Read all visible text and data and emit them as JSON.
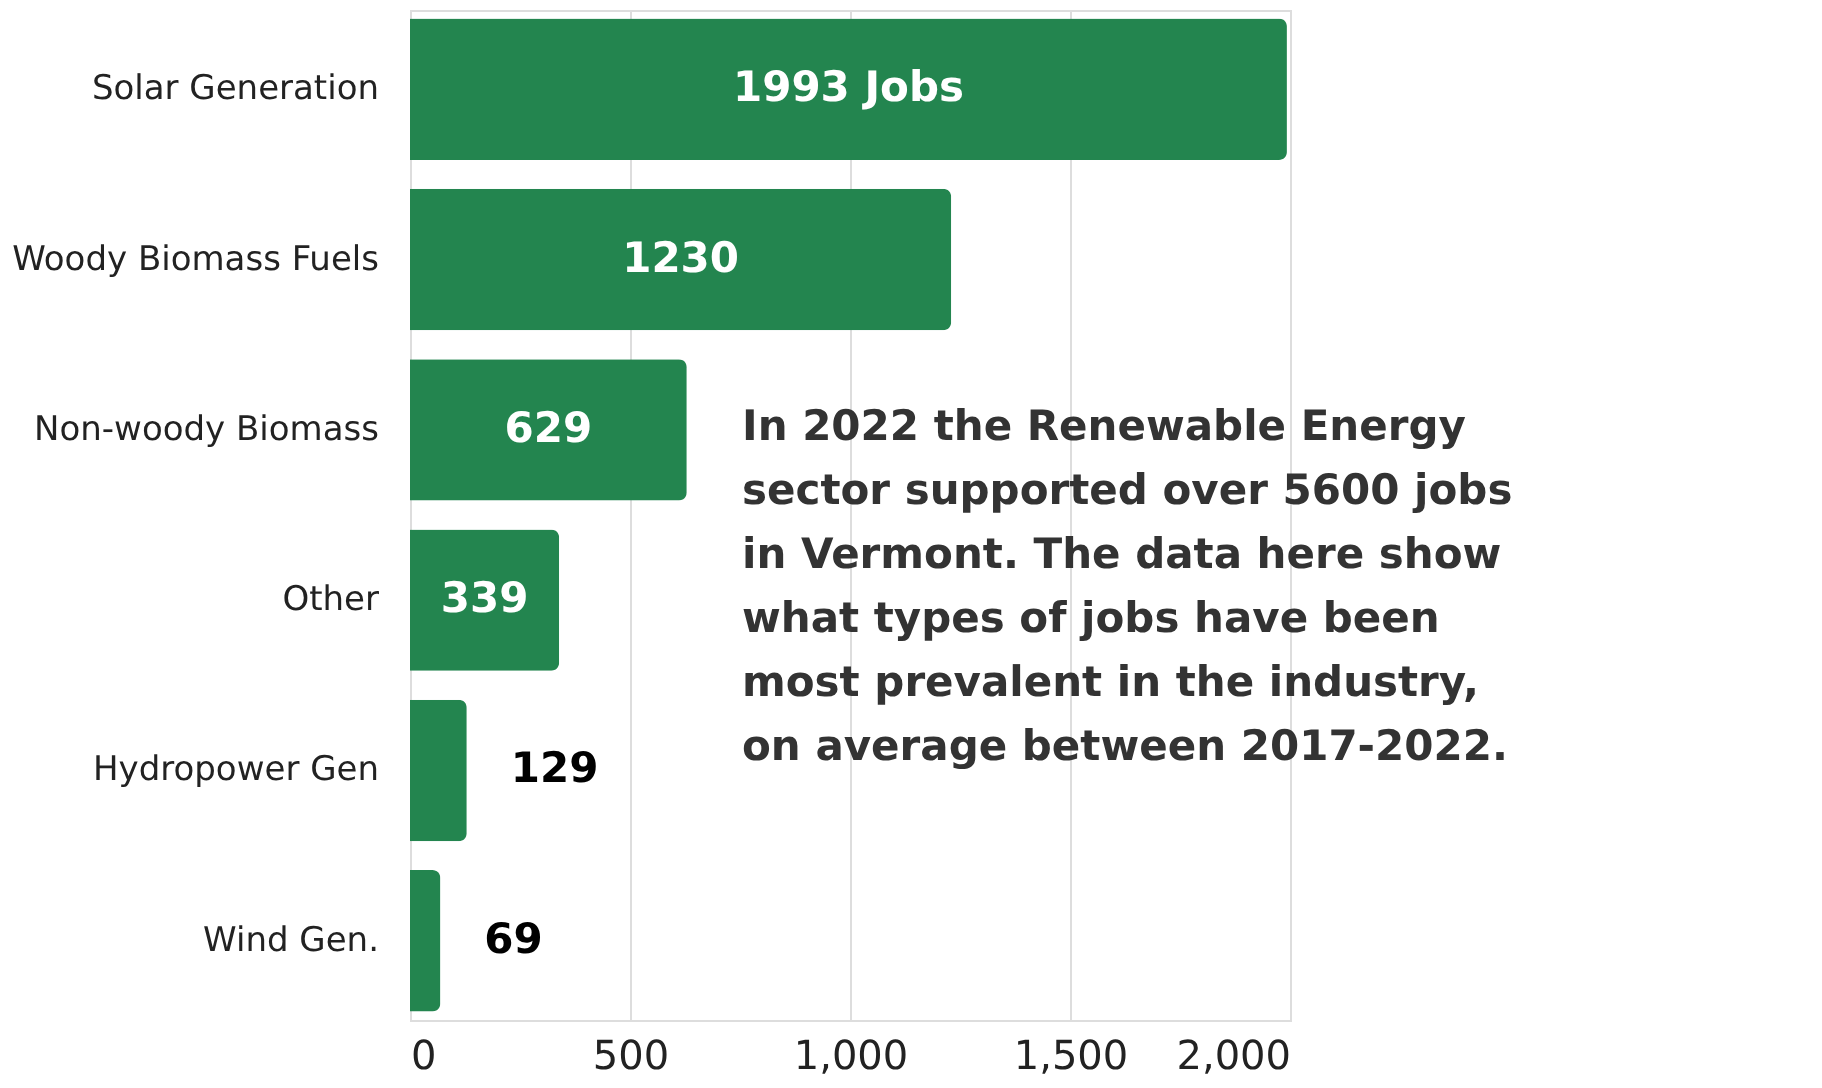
{
  "chart_data": {
    "type": "bar",
    "orientation": "horizontal",
    "categories": [
      "Solar Generation",
      "Woody Biomass Fuels",
      "Non-woody Biomass",
      "Other",
      "Hydropower Gen",
      "Wind Gen."
    ],
    "values": [
      1993,
      1230,
      629,
      339,
      129,
      69
    ],
    "value_labels": [
      "1993 Jobs",
      "1230",
      "629",
      "339",
      "129",
      "69"
    ],
    "color": "#23854f",
    "xlim": [
      0,
      2000
    ],
    "xticks": [
      0,
      500,
      {
        "value": 1000,
        "label": "1,000"
      },
      {
        "value": 1500,
        "label": "1,500"
      },
      {
        "value": 2000,
        "label": "2,000"
      }
    ],
    "grid": "x",
    "annotations": [
      "In 2022 the Renewable Energy\nsector supported over 5600 jobs\nin Vermont. The data here show\nwhat types of jobs have been\nmost prevalent in the industry,\non average between 2017-2022."
    ]
  }
}
